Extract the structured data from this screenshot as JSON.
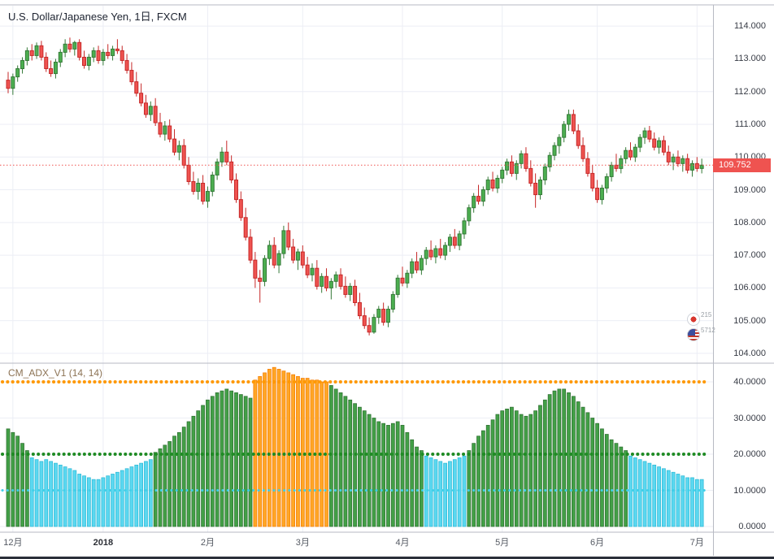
{
  "legend": {
    "title": "U.S. Dollar/Japanese Yen, 1日, FXCM",
    "indicator": "CM_ADX_V1 (14, 14)"
  },
  "price_axis": {
    "last_price_label": "109.752"
  },
  "badges": [
    {
      "icon": "japan-flag-icon",
      "count": "215"
    },
    {
      "icon": "us-flag-icon",
      "count": "5712"
    }
  ],
  "colors": {
    "up": "#4caf50",
    "up_border": "#357a38",
    "down": "#ef5350",
    "down_border": "#c62828",
    "adx_strong": "#43a047",
    "adx_strong_border": "#2e7031",
    "adx_extreme": "#ffa726",
    "adx_extreme_border": "#f57c00",
    "adx_weak": "#5bd8f0",
    "adx_weak_border": "#2fb9d6",
    "line_upper": "#ff9800",
    "line_middle": "#1f8b24",
    "line_lower": "#40cfe8",
    "price_line": "#ef5350",
    "price_tag_bg": "#ef5350",
    "grid": "#eceef5",
    "divider": "#b7bac3",
    "axis_text": "#383c46",
    "time_text": "#555a63",
    "legend_text": "#1d2330",
    "indicator_legend_text": "#8c7355",
    "bottom_bar": "#2a2e39"
  },
  "chart_data": [
    {
      "type": "candlestick",
      "title": "U.S. Dollar/Japanese Yen, 1日, FXCM",
      "ylabel": "price (JPY)",
      "ylim": [
        103.75,
        114.6
      ],
      "grid": true,
      "last_price": 109.752,
      "y_ticks": [
        {
          "value": 114,
          "label": "114.000"
        },
        {
          "value": 113,
          "label": "113.000"
        },
        {
          "value": 112,
          "label": "112.000"
        },
        {
          "value": 111,
          "label": "111.000"
        },
        {
          "value": 110,
          "label": "110.000"
        },
        {
          "value": 109,
          "label": "109.000"
        },
        {
          "value": 108,
          "label": "108.000"
        },
        {
          "value": 107,
          "label": "107.000"
        },
        {
          "value": 106,
          "label": "106.000"
        },
        {
          "value": 105,
          "label": "105.000"
        },
        {
          "value": 104,
          "label": "104.000"
        }
      ],
      "x_ticks": [
        {
          "index": 1,
          "label": "12月"
        },
        {
          "index": 20,
          "label": "2018",
          "year": true
        },
        {
          "index": 42,
          "label": "2月"
        },
        {
          "index": 62,
          "label": "3月"
        },
        {
          "index": 83,
          "label": "4月"
        },
        {
          "index": 104,
          "label": "5月"
        },
        {
          "index": 124,
          "label": "6月"
        },
        {
          "index": 145,
          "label": "7月"
        }
      ],
      "candles": [
        [
          112.35,
          112.6,
          111.95,
          112.1
        ],
        [
          112.1,
          112.55,
          111.9,
          112.45
        ],
        [
          112.45,
          112.8,
          112.3,
          112.7
        ],
        [
          112.7,
          113.05,
          112.55,
          112.95
        ],
        [
          112.95,
          113.35,
          112.8,
          113.25
        ],
        [
          113.25,
          113.45,
          112.95,
          113.1
        ],
        [
          113.1,
          113.5,
          113.0,
          113.4
        ],
        [
          113.4,
          113.55,
          112.95,
          113.05
        ],
        [
          113.05,
          113.2,
          112.6,
          112.7
        ],
        [
          112.7,
          112.95,
          112.45,
          112.55
        ],
        [
          112.55,
          113.0,
          112.4,
          112.9
        ],
        [
          112.9,
          113.3,
          112.75,
          113.2
        ],
        [
          113.2,
          113.6,
          113.05,
          113.45
        ],
        [
          113.45,
          113.65,
          113.2,
          113.3
        ],
        [
          113.3,
          113.55,
          113.1,
          113.5
        ],
        [
          113.5,
          113.6,
          112.95,
          113.05
        ],
        [
          113.05,
          113.25,
          112.7,
          112.8
        ],
        [
          112.8,
          113.15,
          112.65,
          113.05
        ],
        [
          113.05,
          113.35,
          112.9,
          113.25
        ],
        [
          113.25,
          113.4,
          112.85,
          112.95
        ],
        [
          112.95,
          113.3,
          112.8,
          113.2
        ],
        [
          113.2,
          113.45,
          113.0,
          113.1
        ],
        [
          113.1,
          113.4,
          112.95,
          113.3
        ],
        [
          113.3,
          113.6,
          113.15,
          113.25
        ],
        [
          113.25,
          113.4,
          112.85,
          112.95
        ],
        [
          112.95,
          113.15,
          112.55,
          112.65
        ],
        [
          112.65,
          112.9,
          112.2,
          112.3
        ],
        [
          112.3,
          112.6,
          111.85,
          111.95
        ],
        [
          111.95,
          112.25,
          111.55,
          111.65
        ],
        [
          111.65,
          111.9,
          111.2,
          111.3
        ],
        [
          111.3,
          111.7,
          111.1,
          111.55
        ],
        [
          111.55,
          111.8,
          110.95,
          111.05
        ],
        [
          111.05,
          111.35,
          110.6,
          110.7
        ],
        [
          110.7,
          111.1,
          110.5,
          110.95
        ],
        [
          110.95,
          111.15,
          110.45,
          110.55
        ],
        [
          110.55,
          110.85,
          110.05,
          110.15
        ],
        [
          110.15,
          110.5,
          109.9,
          110.35
        ],
        [
          110.35,
          110.55,
          109.65,
          109.75
        ],
        [
          109.75,
          110.0,
          109.15,
          109.25
        ],
        [
          109.25,
          109.55,
          108.85,
          108.95
        ],
        [
          108.95,
          109.35,
          108.7,
          109.2
        ],
        [
          109.2,
          109.45,
          108.55,
          108.65
        ],
        [
          108.65,
          109.1,
          108.45,
          108.95
        ],
        [
          108.95,
          109.55,
          108.8,
          109.45
        ],
        [
          109.45,
          109.95,
          109.3,
          109.85
        ],
        [
          109.85,
          110.3,
          109.7,
          110.15
        ],
        [
          110.15,
          110.5,
          109.75,
          109.85
        ],
        [
          109.85,
          110.05,
          109.2,
          109.3
        ],
        [
          109.3,
          109.5,
          108.6,
          108.7
        ],
        [
          108.7,
          108.95,
          108.05,
          108.15
        ],
        [
          108.15,
          108.45,
          107.45,
          107.55
        ],
        [
          107.55,
          107.8,
          106.75,
          106.85
        ],
        [
          106.85,
          107.1,
          106.0,
          106.3
        ],
        [
          106.3,
          106.55,
          105.55,
          106.2
        ],
        [
          106.2,
          107.0,
          106.05,
          106.9
        ],
        [
          106.9,
          107.45,
          106.7,
          107.3
        ],
        [
          107.3,
          107.55,
          106.6,
          106.7
        ],
        [
          106.7,
          107.15,
          106.45,
          107.05
        ],
        [
          107.05,
          107.9,
          106.9,
          107.75
        ],
        [
          107.75,
          108.0,
          107.15,
          107.25
        ],
        [
          107.25,
          107.5,
          106.75,
          106.85
        ],
        [
          106.85,
          107.2,
          106.55,
          107.1
        ],
        [
          107.1,
          107.3,
          106.6,
          106.7
        ],
        [
          106.7,
          106.95,
          106.3,
          106.4
        ],
        [
          106.4,
          106.75,
          106.2,
          106.6
        ],
        [
          106.6,
          106.85,
          105.95,
          106.05
        ],
        [
          106.05,
          106.45,
          105.85,
          106.35
        ],
        [
          106.35,
          106.6,
          105.9,
          106.0
        ],
        [
          106.0,
          106.3,
          105.65,
          106.2
        ],
        [
          106.2,
          106.5,
          106.0,
          106.4
        ],
        [
          106.4,
          106.6,
          105.95,
          106.05
        ],
        [
          106.05,
          106.35,
          105.7,
          105.8
        ],
        [
          105.8,
          106.15,
          105.6,
          106.05
        ],
        [
          106.05,
          106.25,
          105.45,
          105.55
        ],
        [
          105.55,
          105.85,
          105.05,
          105.15
        ],
        [
          105.15,
          105.4,
          104.75,
          104.85
        ],
        [
          104.85,
          105.1,
          104.55,
          104.65
        ],
        [
          104.65,
          105.2,
          104.6,
          105.1
        ],
        [
          105.1,
          105.45,
          104.9,
          105.35
        ],
        [
          105.35,
          105.55,
          104.85,
          104.95
        ],
        [
          104.95,
          105.45,
          104.8,
          105.35
        ],
        [
          105.35,
          105.9,
          105.25,
          105.8
        ],
        [
          105.8,
          106.4,
          105.7,
          106.3
        ],
        [
          106.3,
          106.65,
          106.05,
          106.15
        ],
        [
          106.15,
          106.55,
          106.0,
          106.45
        ],
        [
          106.45,
          106.9,
          106.3,
          106.8
        ],
        [
          106.8,
          107.1,
          106.45,
          106.55
        ],
        [
          106.55,
          107.0,
          106.4,
          106.9
        ],
        [
          106.9,
          107.25,
          106.7,
          107.15
        ],
        [
          107.15,
          107.45,
          106.85,
          106.95
        ],
        [
          106.95,
          107.3,
          106.75,
          107.2
        ],
        [
          107.2,
          107.5,
          106.9,
          107.0
        ],
        [
          107.0,
          107.4,
          106.85,
          107.3
        ],
        [
          107.3,
          107.65,
          107.1,
          107.55
        ],
        [
          107.55,
          107.8,
          107.2,
          107.3
        ],
        [
          107.3,
          107.75,
          107.15,
          107.65
        ],
        [
          107.65,
          108.15,
          107.5,
          108.05
        ],
        [
          108.05,
          108.55,
          107.9,
          108.45
        ],
        [
          108.45,
          108.9,
          108.3,
          108.8
        ],
        [
          108.8,
          109.15,
          108.55,
          108.65
        ],
        [
          108.65,
          109.1,
          108.5,
          109.0
        ],
        [
          109.0,
          109.4,
          108.85,
          109.3
        ],
        [
          109.3,
          109.55,
          108.95,
          109.05
        ],
        [
          109.05,
          109.45,
          108.9,
          109.35
        ],
        [
          109.35,
          109.7,
          109.2,
          109.6
        ],
        [
          109.6,
          109.95,
          109.45,
          109.85
        ],
        [
          109.85,
          110.05,
          109.4,
          109.5
        ],
        [
          109.5,
          109.9,
          109.3,
          109.8
        ],
        [
          109.8,
          110.2,
          109.65,
          110.1
        ],
        [
          110.1,
          110.3,
          109.55,
          109.65
        ],
        [
          109.65,
          109.9,
          109.1,
          109.2
        ],
        [
          109.2,
          109.5,
          108.45,
          108.85
        ],
        [
          108.85,
          109.4,
          108.7,
          109.3
        ],
        [
          109.3,
          109.8,
          109.15,
          109.7
        ],
        [
          109.7,
          110.15,
          109.55,
          110.05
        ],
        [
          110.05,
          110.45,
          109.9,
          110.35
        ],
        [
          110.35,
          110.7,
          110.1,
          110.6
        ],
        [
          110.6,
          111.1,
          110.45,
          111.0
        ],
        [
          111.0,
          111.45,
          110.8,
          111.3
        ],
        [
          111.3,
          111.45,
          110.7,
          110.8
        ],
        [
          110.8,
          111.0,
          110.25,
          110.35
        ],
        [
          110.35,
          110.6,
          109.85,
          109.95
        ],
        [
          109.95,
          110.15,
          109.4,
          109.5
        ],
        [
          109.5,
          109.75,
          108.95,
          109.05
        ],
        [
          109.05,
          109.3,
          108.6,
          108.7
        ],
        [
          108.7,
          109.15,
          108.55,
          109.05
        ],
        [
          109.05,
          109.5,
          108.9,
          109.4
        ],
        [
          109.4,
          109.85,
          109.25,
          109.75
        ],
        [
          109.75,
          110.1,
          109.55,
          109.65
        ],
        [
          109.65,
          110.05,
          109.5,
          109.95
        ],
        [
          109.95,
          110.3,
          109.8,
          110.2
        ],
        [
          110.2,
          110.45,
          109.9,
          110.0
        ],
        [
          110.0,
          110.4,
          109.85,
          110.3
        ],
        [
          110.3,
          110.7,
          110.15,
          110.6
        ],
        [
          110.6,
          110.9,
          110.4,
          110.8
        ],
        [
          110.8,
          110.95,
          110.45,
          110.55
        ],
        [
          110.55,
          110.75,
          110.2,
          110.3
        ],
        [
          110.3,
          110.6,
          110.1,
          110.5
        ],
        [
          110.5,
          110.65,
          110.05,
          110.15
        ],
        [
          110.15,
          110.35,
          109.75,
          109.85
        ],
        [
          109.85,
          110.1,
          109.6,
          110.0
        ],
        [
          110.0,
          110.2,
          109.7,
          109.8
        ],
        [
          109.8,
          110.05,
          109.55,
          109.95
        ],
        [
          109.95,
          110.1,
          109.5,
          109.6
        ],
        [
          109.6,
          109.9,
          109.4,
          109.8
        ],
        [
          109.8,
          110.0,
          109.55,
          109.65
        ],
        [
          109.65,
          109.95,
          109.5,
          109.752
        ]
      ]
    },
    {
      "type": "bar",
      "title": "CM_ADX_V1 (14, 14)",
      "ylim": [
        0,
        45.7
      ],
      "thresholds": {
        "upper": 40,
        "middle": 20,
        "lower": 10
      },
      "y_ticks": [
        {
          "value": 40,
          "label": "40.0000"
        },
        {
          "value": 30,
          "label": "30.0000"
        },
        {
          "value": 20,
          "label": "20.0000"
        },
        {
          "value": 10,
          "label": "10.0000"
        },
        {
          "value": 0,
          "label": "0.0000"
        }
      ],
      "values": [
        27,
        26,
        25,
        23,
        21,
        19,
        18.5,
        18,
        18.5,
        18,
        17.5,
        17,
        16.5,
        16,
        15.5,
        14.5,
        14,
        13.5,
        13,
        13,
        13.5,
        14,
        14.5,
        15,
        15.5,
        16,
        16.5,
        17,
        17.5,
        18,
        18.5,
        20.5,
        21.5,
        22.5,
        23.5,
        25,
        26,
        27.5,
        29,
        30.5,
        32,
        33.5,
        35,
        36,
        37,
        37.5,
        38,
        37.5,
        37,
        36.5,
        36,
        35.5,
        40.5,
        41.5,
        42.5,
        43.5,
        44,
        43.5,
        43,
        42.5,
        42,
        41.5,
        41,
        41,
        40.5,
        40.5,
        40,
        40,
        39,
        38,
        37,
        36,
        35,
        34,
        33,
        32,
        31,
        30,
        29,
        28.5,
        28,
        28.5,
        29,
        28,
        26,
        24,
        22,
        21,
        19.5,
        19,
        18.5,
        18,
        17.5,
        18,
        18.5,
        19,
        19.5,
        21,
        23,
        25,
        26.5,
        28,
        29.5,
        31,
        32,
        32.5,
        33,
        32,
        31,
        30.5,
        31,
        32,
        33.5,
        35,
        36.5,
        37.5,
        38,
        38,
        37,
        36,
        34.5,
        33,
        31.5,
        30,
        28.5,
        27,
        25.5,
        24,
        23,
        22,
        21,
        19.5,
        19,
        18.5,
        18,
        17.5,
        17,
        16.5,
        16,
        15.5,
        15,
        14.5,
        14,
        13.5,
        13.5,
        13,
        13
      ]
    }
  ]
}
